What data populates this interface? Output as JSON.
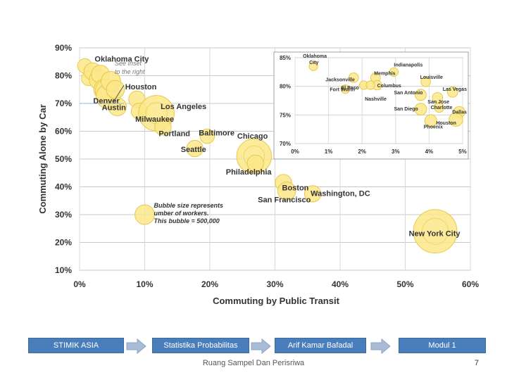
{
  "chart_data": [
    {
      "type": "scatter",
      "subtype": "bubble",
      "title": "",
      "xlabel": "Commuting by Public Transit",
      "ylabel": "Commuting Alone by Car",
      "xlim": [
        0,
        60
      ],
      "ylim": [
        10,
        90
      ],
      "xticks": [
        "0%",
        "10%",
        "20%",
        "30%",
        "40%",
        "50%",
        "60%"
      ],
      "yticks": [
        "10%",
        "20%",
        "30%",
        "40%",
        "50%",
        "60%",
        "70%",
        "80%",
        "90%"
      ],
      "grid": true,
      "annotation": "Bubble size represents number of workers. This bubble = 500,000",
      "inset_note": "See Inset to the right",
      "points": [
        {
          "label": "Oklahoma City",
          "x": 0.8,
          "y": 83.5,
          "size": 0.2
        },
        {
          "label": "",
          "x": 1.4,
          "y": 79,
          "size": 0.2
        },
        {
          "label": "",
          "x": 2.0,
          "y": 81.5,
          "size": 0.35
        },
        {
          "label": "",
          "x": 3.0,
          "y": 78.5,
          "size": 0.5
        },
        {
          "label": "",
          "x": 3.2,
          "y": 80.5,
          "size": 0.4
        },
        {
          "label": "",
          "x": 3.8,
          "y": 75,
          "size": 0.6
        },
        {
          "label": "",
          "x": 4.2,
          "y": 74.5,
          "size": 0.8
        },
        {
          "label": "Houston",
          "x": 4.4,
          "y": 72.5,
          "size": 0.9
        },
        {
          "label": "",
          "x": 4.8,
          "y": 78,
          "size": 0.5
        },
        {
          "label": "",
          "x": 5.5,
          "y": 75,
          "size": 0.4
        },
        {
          "label": "Austin",
          "x": 5.8,
          "y": 68.8,
          "size": 0.4
        },
        {
          "label": "Denver",
          "x": 8.8,
          "y": 71.5,
          "size": 0.3
        },
        {
          "label": "Milwaukee",
          "x": 9.2,
          "y": 67.2,
          "size": 0.3
        },
        {
          "label": "Los Angeles",
          "x": 11.8,
          "y": 66.5,
          "size": 2.3
        },
        {
          "label": "Portland",
          "x": 12.8,
          "y": 61.5,
          "size": 0.3
        },
        {
          "label": "Baltimore",
          "x": 19.6,
          "y": 58.2,
          "size": 0.2
        },
        {
          "label": "Seattle",
          "x": 17.7,
          "y": 53.8,
          "size": 0.3
        },
        {
          "label": "Chicago",
          "x": 26.8,
          "y": 51,
          "size": 2.2
        },
        {
          "label": "Philadelphia",
          "x": 27,
          "y": 48.5,
          "size": 0.3
        },
        {
          "label": "Boston",
          "x": 31.3,
          "y": 41.5,
          "size": 0.3
        },
        {
          "label": "San Francisco",
          "x": 31.8,
          "y": 38.5,
          "size": 0.4
        },
        {
          "label": "Washington, DC",
          "x": 35.8,
          "y": 37.5,
          "size": 0.3
        },
        {
          "label": "New York City",
          "x": 54.6,
          "y": 24,
          "size": 3.7
        },
        {
          "label": "Bubble size represents number of workers. This bubble = 500,000",
          "x": 10,
          "y": 30,
          "size": 0.5
        }
      ]
    },
    {
      "type": "scatter",
      "subtype": "bubble-inset",
      "xlim": [
        0,
        5
      ],
      "ylim": [
        70,
        85
      ],
      "xticks": [
        "0%",
        "1%",
        "2%",
        "3%",
        "4%",
        "5%"
      ],
      "yticks": [
        "70%",
        "75%",
        "80%",
        "85%"
      ],
      "points": [
        {
          "label": "Oklahoma City",
          "x": 0.55,
          "y": 83.5,
          "size": 0.2
        },
        {
          "label": "Indianapolis",
          "x": 2.95,
          "y": 82.5,
          "size": 0.2
        },
        {
          "label": "Jacksonville",
          "x": 1.75,
          "y": 81.5,
          "size": 0.3
        },
        {
          "label": "Memphis",
          "x": 2.4,
          "y": 81.5,
          "size": 0.3
        },
        {
          "label": "Louisville",
          "x": 3.9,
          "y": 80.8,
          "size": 0.3
        },
        {
          "label": "El Paso",
          "x": 2.05,
          "y": 80.2,
          "size": 0.2
        },
        {
          "label": "Columbus",
          "x": 2.45,
          "y": 80.2,
          "size": 0.3
        },
        {
          "label": "Fort Worth",
          "x": 1.5,
          "y": 79.5,
          "size": 0.2
        },
        {
          "label": "Nashville",
          "x": 2.25,
          "y": 80.2,
          "size": 0.2
        },
        {
          "label": "San Antonio",
          "x": 3.75,
          "y": 78.5,
          "size": 0.5
        },
        {
          "label": "Las Vegas",
          "x": 4.7,
          "y": 79,
          "size": 0.4
        },
        {
          "label": "San Jose",
          "x": 4.25,
          "y": 78,
          "size": 0.4
        },
        {
          "label": "San Diego",
          "x": 3.75,
          "y": 76,
          "size": 0.6
        },
        {
          "label": "Charlotte",
          "x": 4.3,
          "y": 76.3,
          "size": 0.3
        },
        {
          "label": "Dallas",
          "x": 4.9,
          "y": 75.5,
          "size": 0.5
        },
        {
          "label": "Phoenix",
          "x": 4.05,
          "y": 74,
          "size": 0.6
        },
        {
          "label": "Houston",
          "x": 4.8,
          "y": 74.2,
          "size": 0.9
        }
      ]
    }
  ],
  "footer": {
    "box1": "STIMIK ASIA",
    "box2": "Statistika Probabilitas",
    "box3": "Arif Kamar Bafadal",
    "box4": "Modul 1",
    "center_text": "Ruang Sampel Dan Perisriwa",
    "page_number": "7"
  }
}
